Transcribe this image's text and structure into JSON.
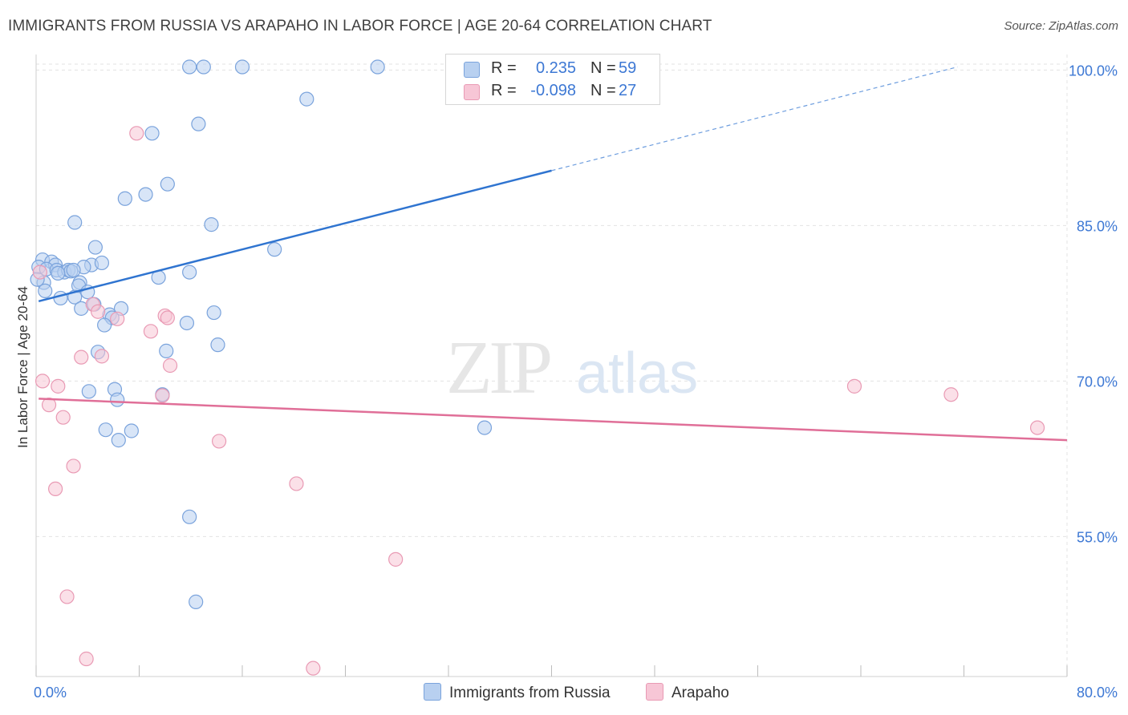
{
  "title": "IMMIGRANTS FROM RUSSIA VS ARAPAHO IN LABOR FORCE | AGE 20-64 CORRELATION CHART",
  "source": "Source: ZipAtlas.com",
  "watermark": {
    "zip": "ZIP",
    "atlas": "atlas"
  },
  "legend": {
    "russia": {
      "r_label": "R =",
      "r_value": "0.235",
      "n_label": "N =",
      "n_value": "59"
    },
    "arapaho": {
      "r_label": "R =",
      "r_value": "-0.098",
      "n_label": "N =",
      "n_value": "27"
    }
  },
  "colors": {
    "russia_fill": "#b8d0f0",
    "russia_stroke": "#7aa3dc",
    "russia_line": "#2f74d0",
    "arapaho_fill": "#f7c6d6",
    "arapaho_stroke": "#e99ab4",
    "arapaho_line": "#e06f98",
    "grid": "#e3e3e3",
    "tick_label": "#3d78d4"
  },
  "chart_data": {
    "type": "scatter",
    "title": "IMMIGRANTS FROM RUSSIA VS ARAPAHO IN LABOR FORCE | AGE 20-64 CORRELATION CHART",
    "xlabel": "",
    "ylabel": "In Labor Force | Age 20-64",
    "xlim": [
      0,
      80
    ],
    "ylim": [
      41.5,
      101.5
    ],
    "x_tick_labels": [
      {
        "value": 0,
        "label": "0.0%"
      },
      {
        "value": 80,
        "label": "80.0%"
      }
    ],
    "y_tick_labels": [
      {
        "value": 100,
        "label": "100.0%"
      },
      {
        "value": 85,
        "label": "85.0%"
      },
      {
        "value": 70,
        "label": "70.0%"
      },
      {
        "value": 55,
        "label": "55.0%"
      }
    ],
    "grid": true,
    "series": [
      {
        "name": "Immigrants from Russia",
        "color": "#b8d0f0",
        "trend": {
          "x0": 0.2,
          "y0": 77.7,
          "x1": 40.0,
          "y1": 90.3,
          "x_dash_end": 71.5,
          "y_dash_end": 100.3
        },
        "points": [
          [
            11.9,
            100.3
          ],
          [
            13.0,
            100.3
          ],
          [
            16.0,
            100.3
          ],
          [
            26.5,
            100.3
          ],
          [
            21.0,
            97.2
          ],
          [
            12.6,
            94.8
          ],
          [
            9.0,
            93.9
          ],
          [
            10.2,
            89.0
          ],
          [
            8.5,
            88.0
          ],
          [
            6.9,
            87.6
          ],
          [
            3.0,
            85.3
          ],
          [
            13.6,
            85.1
          ],
          [
            18.5,
            82.7
          ],
          [
            4.6,
            82.9
          ],
          [
            0.5,
            81.7
          ],
          [
            1.2,
            81.5
          ],
          [
            1.5,
            81.2
          ],
          [
            4.3,
            81.2
          ],
          [
            5.1,
            81.4
          ],
          [
            3.7,
            81.0
          ],
          [
            0.2,
            81.0
          ],
          [
            0.8,
            80.8
          ],
          [
            1.6,
            80.7
          ],
          [
            2.2,
            80.5
          ],
          [
            2.5,
            80.7
          ],
          [
            2.7,
            80.6
          ],
          [
            2.9,
            80.7
          ],
          [
            11.9,
            80.5
          ],
          [
            1.7,
            80.4
          ],
          [
            9.5,
            80.0
          ],
          [
            0.6,
            79.5
          ],
          [
            3.4,
            79.5
          ],
          [
            3.3,
            79.2
          ],
          [
            4.0,
            78.6
          ],
          [
            0.7,
            78.7
          ],
          [
            3.0,
            78.1
          ],
          [
            1.9,
            78.0
          ],
          [
            4.5,
            77.4
          ],
          [
            3.5,
            77.0
          ],
          [
            6.6,
            77.0
          ],
          [
            5.7,
            76.4
          ],
          [
            5.9,
            76.1
          ],
          [
            13.8,
            76.6
          ],
          [
            11.7,
            75.6
          ],
          [
            5.3,
            75.4
          ],
          [
            14.1,
            73.5
          ],
          [
            10.1,
            72.9
          ],
          [
            4.8,
            72.8
          ],
          [
            4.1,
            69.0
          ],
          [
            6.1,
            69.2
          ],
          [
            9.8,
            68.7
          ],
          [
            6.3,
            68.2
          ],
          [
            34.8,
            65.5
          ],
          [
            5.4,
            65.3
          ],
          [
            7.4,
            65.2
          ],
          [
            6.4,
            64.3
          ],
          [
            11.9,
            56.9
          ],
          [
            12.4,
            48.7
          ],
          [
            0.1,
            79.8
          ]
        ]
      },
      {
        "name": "Arapaho",
        "color": "#f7c6d6",
        "trend": {
          "x0": 0.2,
          "y0": 68.3,
          "x1": 80.0,
          "y1": 64.3
        },
        "points": [
          [
            7.8,
            93.9
          ],
          [
            4.4,
            77.4
          ],
          [
            4.8,
            76.7
          ],
          [
            6.3,
            76.0
          ],
          [
            10.0,
            76.3
          ],
          [
            10.2,
            76.1
          ],
          [
            8.9,
            74.8
          ],
          [
            3.5,
            72.3
          ],
          [
            5.1,
            72.4
          ],
          [
            10.4,
            71.5
          ],
          [
            0.5,
            70.0
          ],
          [
            1.7,
            69.5
          ],
          [
            9.8,
            68.6
          ],
          [
            1.0,
            67.7
          ],
          [
            2.1,
            66.5
          ],
          [
            14.2,
            64.2
          ],
          [
            2.9,
            61.8
          ],
          [
            1.5,
            59.6
          ],
          [
            20.2,
            60.1
          ],
          [
            27.9,
            52.8
          ],
          [
            2.4,
            49.2
          ],
          [
            3.9,
            43.2
          ],
          [
            21.5,
            42.3
          ],
          [
            63.5,
            69.5
          ],
          [
            71.0,
            68.7
          ],
          [
            77.7,
            65.5
          ],
          [
            0.3,
            80.5
          ]
        ]
      }
    ]
  }
}
